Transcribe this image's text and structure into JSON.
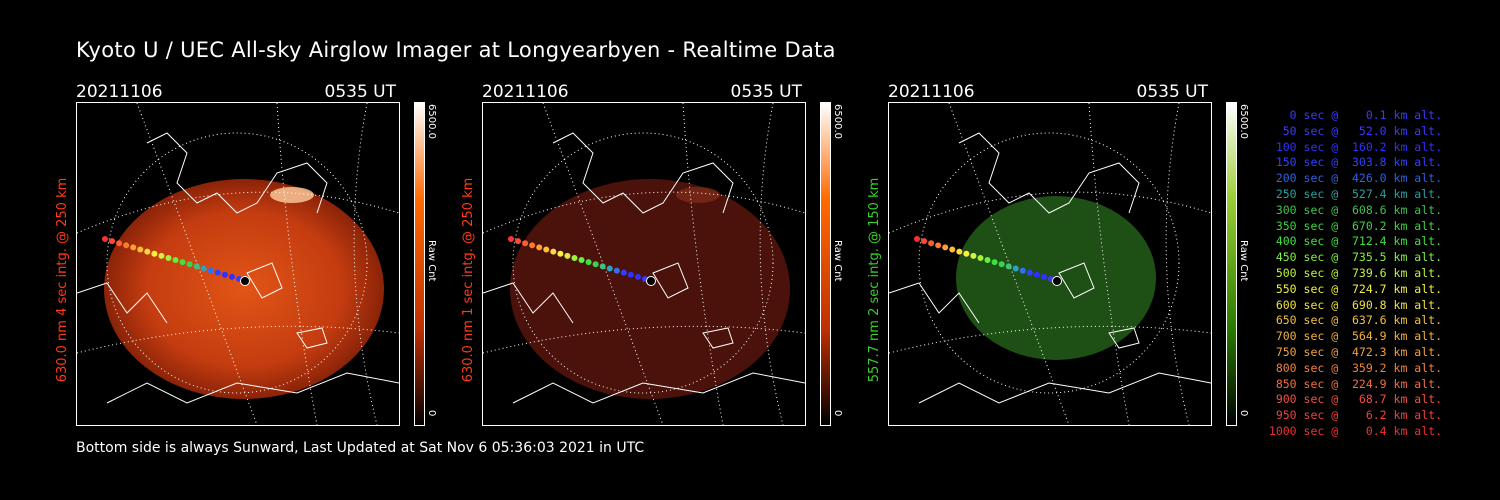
{
  "title": "Kyoto U / UEC All-sky Airglow Imager at Longyearbyen - Realtime Data",
  "footer": "Bottom side is always Sunward, Last Updated at Sat Nov  6 05:36:03 2021 in UTC",
  "panels": [
    {
      "date": "20211106",
      "time": "0535 UT",
      "ylabel": "630.0 nm 4 sec intg. @ 250 km",
      "ylabel_color": "#ff3a1a",
      "cbar_max": "6500.0",
      "cbar_label": "Raw Cnt",
      "cbar_min": "0",
      "glow_color": "#d8400f",
      "cbar_color": "#ff4a00"
    },
    {
      "date": "20211106",
      "time": "0535 UT",
      "ylabel": "630.0 nm 1 sec intg. @ 250 km",
      "ylabel_color": "#ff3a1a",
      "cbar_max": "6500.0",
      "cbar_label": "Raw Cnt",
      "cbar_min": "0",
      "glow_color": "#5a1408",
      "cbar_color": "#ff4a00"
    },
    {
      "date": "20211106",
      "time": "0535 UT",
      "ylabel": "557.7 nm 2 sec intg. @ 150 km",
      "ylabel_color": "#37d12a",
      "cbar_max": "6500.0",
      "cbar_label": "Raw Cnt",
      "cbar_min": "0",
      "glow_color": "#1e5a16",
      "cbar_color": "#4aa000"
    }
  ],
  "legend": [
    {
      "text": "   0 sec @    0.1 km alt.",
      "color": "#3a3aff"
    },
    {
      "text": "  50 sec @   52.0 km alt.",
      "color": "#3a3aff"
    },
    {
      "text": " 100 sec @  160.2 km alt.",
      "color": "#3030ff"
    },
    {
      "text": " 150 sec @  303.8 km alt.",
      "color": "#3040ff"
    },
    {
      "text": " 200 sec @  426.0 km alt.",
      "color": "#3060e0"
    },
    {
      "text": " 250 sec @  527.4 km alt.",
      "color": "#2aa0a0"
    },
    {
      "text": " 300 sec @  608.6 km alt.",
      "color": "#40c050"
    },
    {
      "text": " 350 sec @  670.2 km alt.",
      "color": "#40d040"
    },
    {
      "text": " 400 sec @  712.4 km alt.",
      "color": "#40e040"
    },
    {
      "text": " 450 sec @  735.5 km alt.",
      "color": "#80f040"
    },
    {
      "text": " 500 sec @  739.6 km alt.",
      "color": "#c0f040"
    },
    {
      "text": " 550 sec @  724.7 km alt.",
      "color": "#f0f040"
    },
    {
      "text": " 600 sec @  690.8 km alt.",
      "color": "#f0e040"
    },
    {
      "text": " 650 sec @  637.6 km alt.",
      "color": "#f0c040"
    },
    {
      "text": " 700 sec @  564.9 km alt.",
      "color": "#f0b040"
    },
    {
      "text": " 750 sec @  472.3 km alt.",
      "color": "#f0a040"
    },
    {
      "text": " 800 sec @  359.2 km alt.",
      "color": "#f08040"
    },
    {
      "text": " 850 sec @  224.9 km alt.",
      "color": "#f07040"
    },
    {
      "text": " 900 sec @   68.7 km alt.",
      "color": "#f05040"
    },
    {
      "text": " 950 sec @    6.2 km alt.",
      "color": "#f04040"
    },
    {
      "text": "1000 sec @    0.4 km alt.",
      "color": "#f03030"
    }
  ],
  "track_colors": [
    "#ff3030",
    "#ff4a30",
    "#ff6030",
    "#ff7a30",
    "#ffa030",
    "#ffc030",
    "#ffd840",
    "#fff040",
    "#d8f040",
    "#a0f040",
    "#60f040",
    "#40e040",
    "#40d050",
    "#40c080",
    "#30a0c0",
    "#3070f0",
    "#3040ff",
    "#3030ff",
    "#3030ff",
    "#3a3aff"
  ]
}
